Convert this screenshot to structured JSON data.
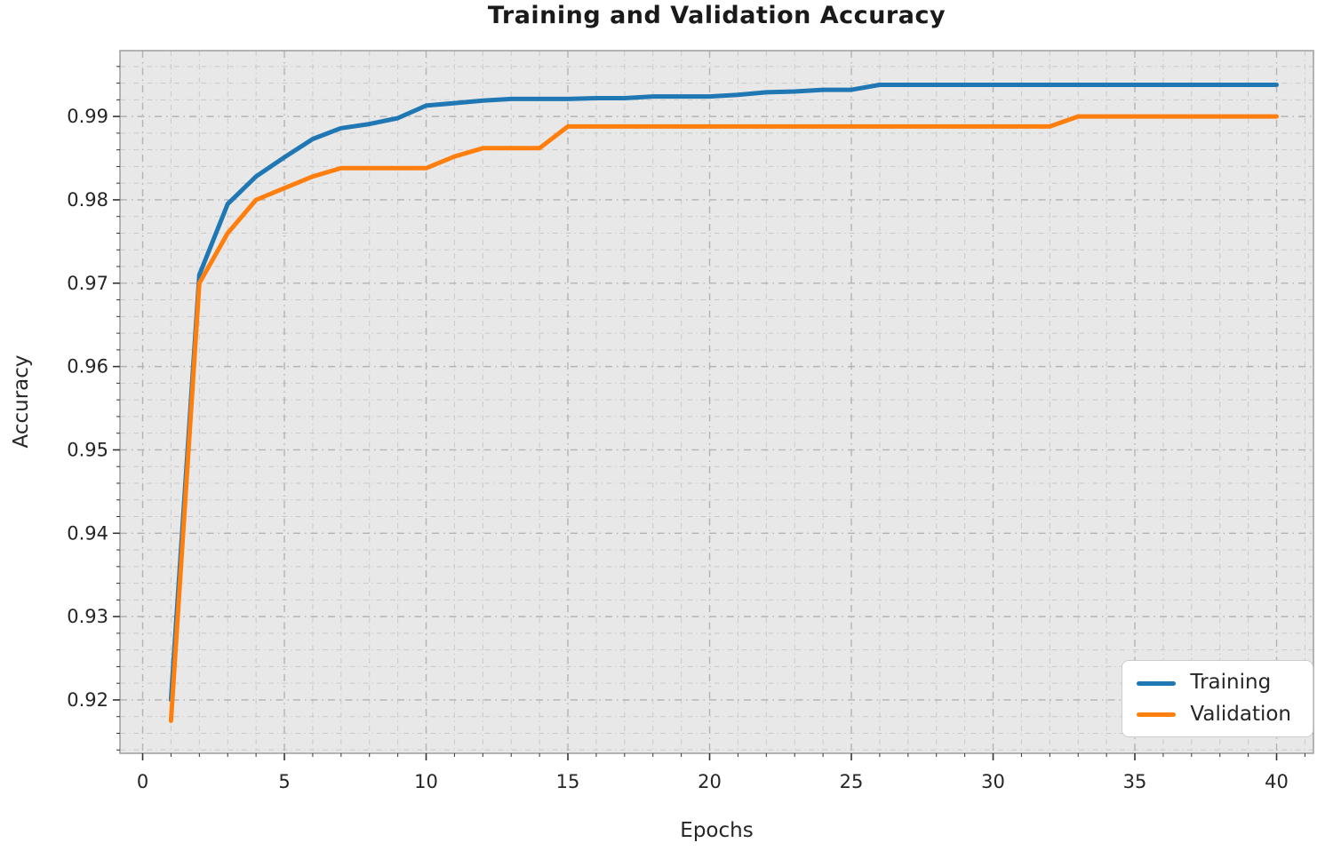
{
  "figure": {
    "title": "Training and Validation Accuracy",
    "xlabel": "Epochs",
    "ylabel": "Accuracy"
  },
  "chart_data": {
    "type": "line",
    "title": "Training and Validation Accuracy",
    "xlabel": "Epochs",
    "ylabel": "Accuracy",
    "x": [
      1,
      2,
      3,
      4,
      5,
      6,
      7,
      8,
      9,
      10,
      11,
      12,
      13,
      14,
      15,
      16,
      17,
      18,
      19,
      20,
      21,
      22,
      23,
      24,
      25,
      26,
      27,
      28,
      29,
      30,
      31,
      32,
      33,
      34,
      35,
      36,
      37,
      38,
      39,
      40
    ],
    "series": [
      {
        "name": "Training",
        "color": "#1f77b4",
        "values": [
          0.92,
          0.971,
          0.9795,
          0.9828,
          0.9851,
          0.9873,
          0.9886,
          0.9891,
          0.9898,
          0.9913,
          0.9916,
          0.9919,
          0.9921,
          0.9921,
          0.9921,
          0.9922,
          0.9922,
          0.9924,
          0.9924,
          0.9924,
          0.9926,
          0.9929,
          0.993,
          0.9932,
          0.9932,
          0.9938,
          0.9938,
          0.9938,
          0.9938,
          0.9938,
          0.9938,
          0.9938,
          0.9938,
          0.9938,
          0.9938,
          0.9938,
          0.9938,
          0.9938,
          0.9938,
          0.9938
        ]
      },
      {
        "name": "Validation",
        "color": "#ff7f0e",
        "values": [
          0.9175,
          0.97,
          0.976,
          0.98,
          0.9814,
          0.9828,
          0.9838,
          0.9838,
          0.9838,
          0.9838,
          0.9852,
          0.9862,
          0.9862,
          0.9862,
          0.9888,
          0.9888,
          0.9888,
          0.9888,
          0.9888,
          0.9888,
          0.9888,
          0.9888,
          0.9888,
          0.9888,
          0.9888,
          0.9888,
          0.9888,
          0.9888,
          0.9888,
          0.9888,
          0.9888,
          0.9888,
          0.99,
          0.99,
          0.99,
          0.99,
          0.99,
          0.99,
          0.99,
          0.99
        ]
      }
    ],
    "xlim": [
      -0.8,
      41.3
    ],
    "ylim": [
      0.9136,
      0.9979
    ],
    "xticks": [
      0,
      5,
      10,
      15,
      20,
      25,
      30,
      35,
      40
    ],
    "xtick_labels": [
      "0",
      "5",
      "10",
      "15",
      "20",
      "25",
      "30",
      "35",
      "40"
    ],
    "yticks": [
      0.92,
      0.93,
      0.94,
      0.95,
      0.96,
      0.97,
      0.98,
      0.99
    ],
    "ytick_labels": [
      "0.92",
      "0.93",
      "0.94",
      "0.95",
      "0.96",
      "0.97",
      "0.98",
      "0.99"
    ],
    "x_minor_step": 1,
    "y_minor_step": 0.002,
    "grid": true,
    "grid_style": "dash-dot",
    "plot_bg": "#e8e8e8",
    "grid_major_color": "#b3b3b3",
    "grid_minor_color": "#c9c9c9",
    "border_color": "#9e9e9e",
    "tick_color": "#333333",
    "tick_label_color": "#262626",
    "legend_position": "lower right",
    "line_width": 5
  }
}
